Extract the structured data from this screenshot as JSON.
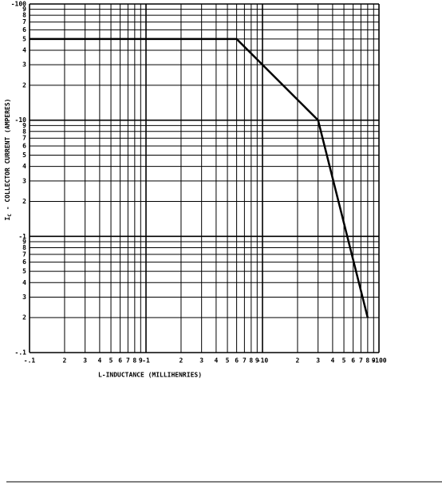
{
  "chart_data": {
    "type": "line",
    "xlabel": "L-INDUCTANCE (MILLIHENRIES)",
    "ylabel": {
      "main": "I",
      "sub": "C",
      "rest": " - COLLECTOR CURRENT (AMPERES)"
    },
    "x": [
      0.1,
      6,
      30,
      80
    ],
    "series": [
      {
        "color": "#000000",
        "values": [
          50,
          50,
          10,
          0.2
        ]
      }
    ],
    "xlog": true,
    "ylog": true,
    "grid": true,
    "xlim": [
      0.1,
      100
    ],
    "ylim": [
      0.1,
      100
    ],
    "xticks": [
      {
        "value": 0.1,
        "label": "-.1"
      },
      {
        "value": 0.2,
        "label": "2"
      },
      {
        "value": 0.3,
        "label": "3"
      },
      {
        "value": 0.4,
        "label": "4"
      },
      {
        "value": 0.5,
        "label": "5"
      },
      {
        "value": 0.6,
        "label": "6"
      },
      {
        "value": 0.7,
        "label": "7"
      },
      {
        "value": 0.8,
        "label": "8"
      },
      {
        "value": 0.9,
        "label": "9"
      },
      {
        "value": 1,
        "label": "-1"
      },
      2,
      3,
      4,
      5,
      6,
      7,
      8,
      9,
      {
        "value": 10,
        "label": "-10"
      },
      {
        "value": 20,
        "label": "2"
      },
      {
        "value": 30,
        "label": "3"
      },
      {
        "value": 40,
        "label": "4"
      },
      {
        "value": 50,
        "label": "5"
      },
      {
        "value": 60,
        "label": "6"
      },
      {
        "value": 70,
        "label": "7"
      },
      {
        "value": 80,
        "label": "8"
      },
      {
        "value": 90,
        "label": "9"
      },
      {
        "value": 100,
        "label": "-100"
      }
    ],
    "yticks": [
      {
        "value": 0.1,
        "label": "-.1"
      },
      {
        "value": 0.2,
        "label": "2"
      },
      {
        "value": 0.3,
        "label": "3"
      },
      {
        "value": 0.4,
        "label": "4"
      },
      {
        "value": 0.5,
        "label": "5"
      },
      {
        "value": 0.6,
        "label": "6"
      },
      {
        "value": 0.7,
        "label": "7"
      },
      {
        "value": 0.8,
        "label": "8"
      },
      {
        "value": 0.9,
        "label": "9"
      },
      {
        "value": 1,
        "label": "-1"
      },
      2,
      3,
      4,
      5,
      6,
      7,
      8,
      9,
      {
        "value": 10,
        "label": "-10"
      },
      {
        "value": 20,
        "label": "2"
      },
      {
        "value": 30,
        "label": "3"
      },
      {
        "value": 40,
        "label": "4"
      },
      {
        "value": 50,
        "label": "5"
      },
      {
        "value": 60,
        "label": "6"
      },
      {
        "value": 70,
        "label": "7"
      },
      {
        "value": 80,
        "label": "8"
      },
      {
        "value": 90,
        "label": "9"
      },
      {
        "value": 100,
        "label": "-100"
      }
    ]
  }
}
